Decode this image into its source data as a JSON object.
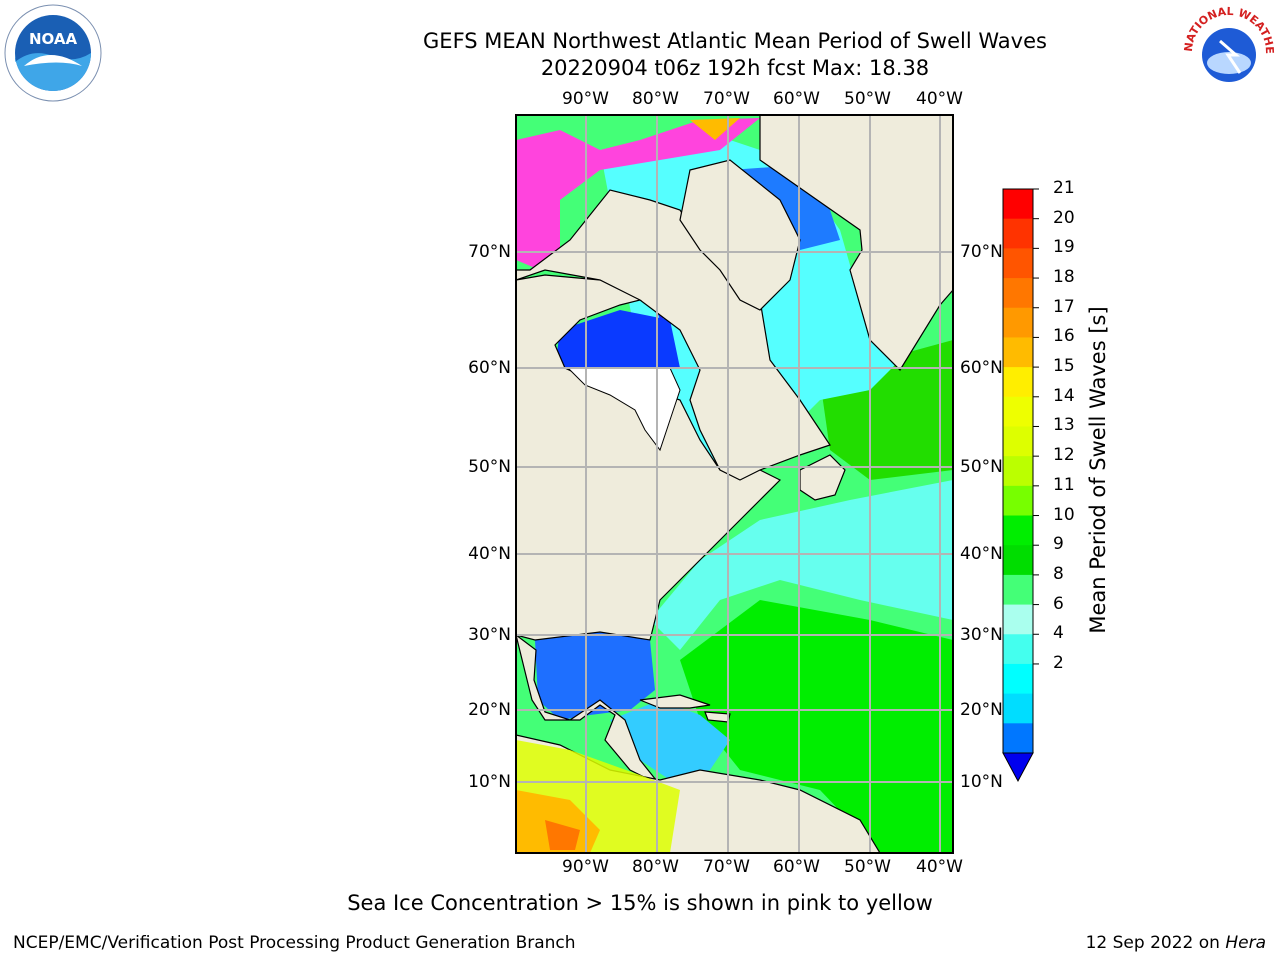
{
  "title_line1": "GEFS MEAN Northwest Atlantic Mean Period of Swell Waves",
  "title_line2": "20220904 t06z 192h fcst   Max: 18.38",
  "lon_labels": [
    "90°W",
    "80°W",
    "70°W",
    "60°W",
    "50°W",
    "40°W"
  ],
  "lat_labels": [
    "70°N",
    "60°N",
    "50°N",
    "40°N",
    "30°N",
    "20°N",
    "10°N"
  ],
  "colorbar": {
    "label": "Mean Period of Swell Waves [s]",
    "ticks": [
      "21",
      "20",
      "19",
      "18",
      "17",
      "16",
      "15",
      "14",
      "13",
      "12",
      "11",
      "10",
      "9",
      "8",
      "6",
      "4",
      "2"
    ],
    "colors": [
      "#ff0000",
      "#ff3300",
      "#ff5500",
      "#ff7700",
      "#ff9900",
      "#ffbb00",
      "#ffee00",
      "#eeff00",
      "#ddff00",
      "#bbff00",
      "#77ff00",
      "#00ee00",
      "#00dd00",
      "#44ff77",
      "#aaffee",
      "#44ffee",
      "#00ffff",
      "#00ddff",
      "#0077ff"
    ],
    "under_color": "#0000ee"
  },
  "footer_note": "Sea Ice Concentration > 15% is shown in pink to yellow",
  "footer_left": "NCEP/EMC/Verification Post Processing Product Generation Branch",
  "footer_date": "12 Sep 2022 on",
  "footer_host": "Hera",
  "logos": {
    "left": "NOAA",
    "right": "NATIONAL WEATHER SERVICE"
  },
  "colors": {
    "land": "#efecdc",
    "grid": "#b4b4b4",
    "ice_pink": "#ff44dd"
  }
}
